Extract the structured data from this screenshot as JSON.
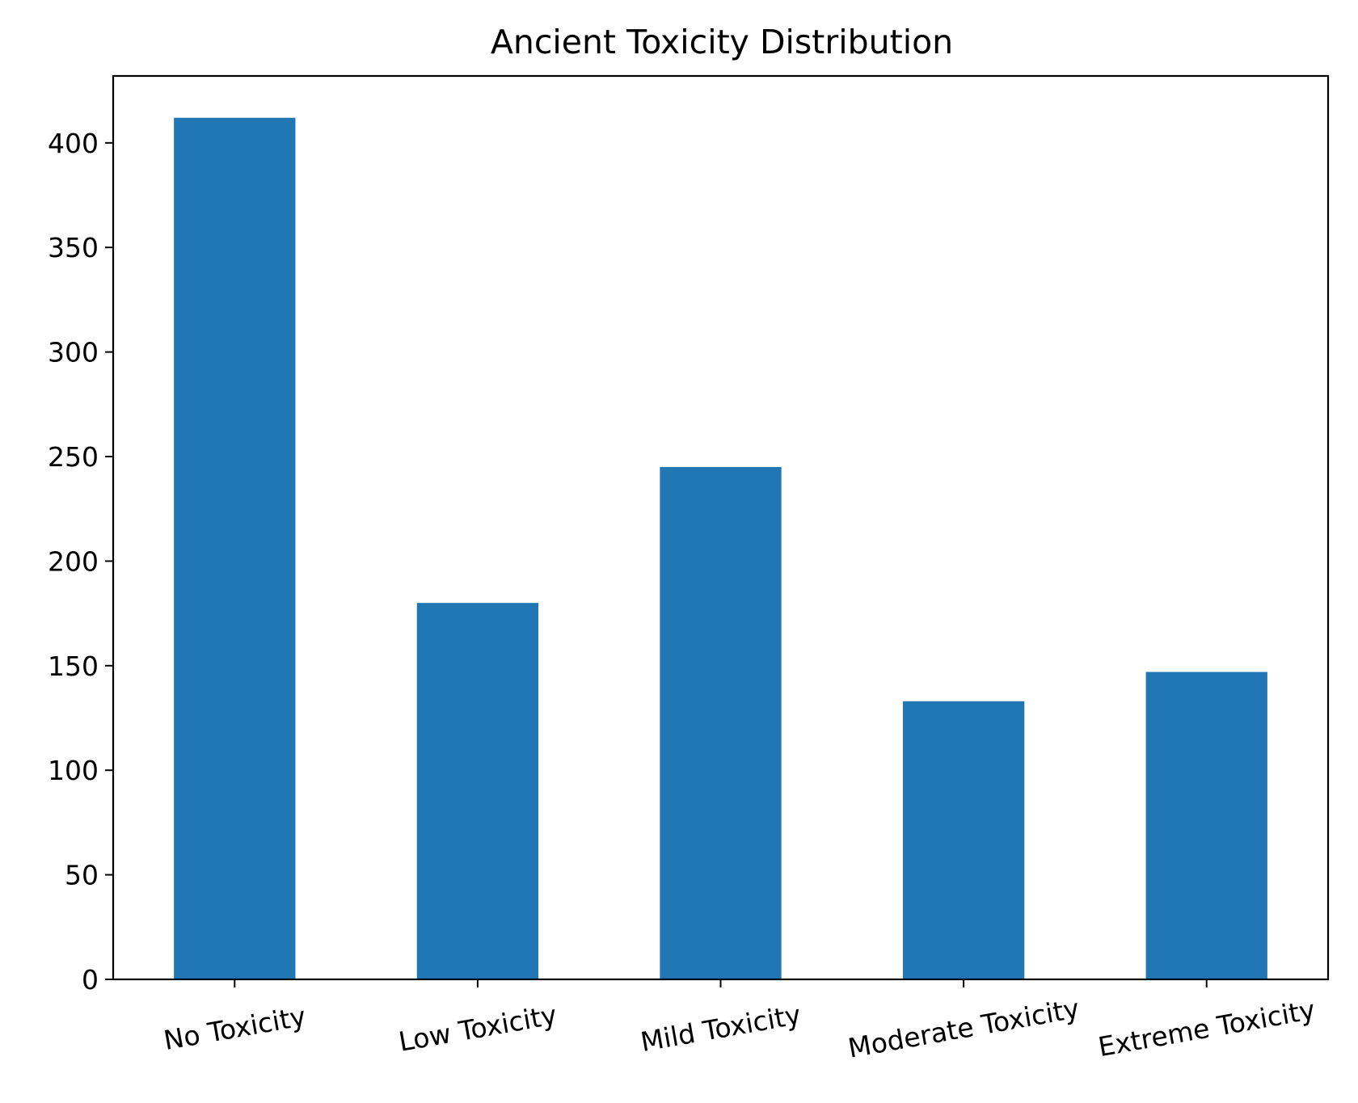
{
  "chart_data": {
    "type": "bar",
    "title": "Ancient Toxicity Distribution",
    "xlabel": "",
    "ylabel": "",
    "categories": [
      "No Toxicity",
      "Low Toxicity",
      "Mild Toxicity",
      "Moderate Toxicity",
      "Extreme Toxicity"
    ],
    "values": [
      412,
      180,
      245,
      133,
      147
    ],
    "ylim": [
      0,
      432
    ],
    "yticks": [
      0,
      50,
      100,
      150,
      200,
      250,
      300,
      350,
      400
    ],
    "xtick_rotation_deg": -10,
    "grid": false,
    "legend": "none",
    "bar_color": "#2077b4",
    "axis_color": "#000000"
  }
}
